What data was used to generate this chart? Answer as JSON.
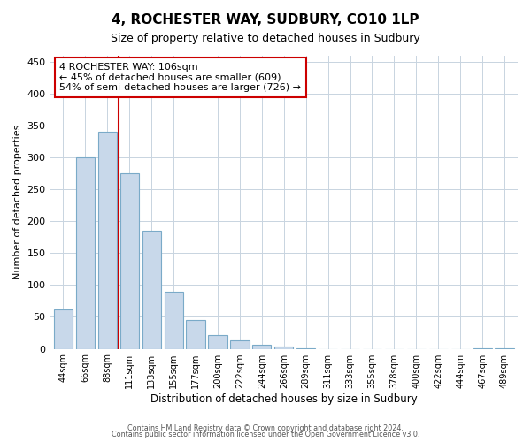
{
  "title": "4, ROCHESTER WAY, SUDBURY, CO10 1LP",
  "subtitle": "Size of property relative to detached houses in Sudbury",
  "xlabel": "Distribution of detached houses by size in Sudbury",
  "ylabel": "Number of detached properties",
  "bar_labels": [
    "44sqm",
    "66sqm",
    "88sqm",
    "111sqm",
    "133sqm",
    "155sqm",
    "177sqm",
    "200sqm",
    "222sqm",
    "244sqm",
    "266sqm",
    "289sqm",
    "311sqm",
    "333sqm",
    "355sqm",
    "378sqm",
    "400sqm",
    "422sqm",
    "444sqm",
    "467sqm",
    "489sqm"
  ],
  "bar_values": [
    62,
    300,
    340,
    275,
    185,
    90,
    45,
    22,
    13,
    7,
    3,
    1,
    0,
    0,
    0,
    0,
    0,
    0,
    0,
    1,
    1
  ],
  "bar_color": "#c8d8ea",
  "bar_edge_color": "#7aaac8",
  "vline_x": 2.5,
  "vline_color": "#cc0000",
  "annotation_line1": "4 ROCHESTER WAY: 106sqm",
  "annotation_line2": "← 45% of detached houses are smaller (609)",
  "annotation_line3": "54% of semi-detached houses are larger (726) →",
  "ann_box_border_color": "#cc0000",
  "ylim": [
    0,
    460
  ],
  "yticks": [
    0,
    50,
    100,
    150,
    200,
    250,
    300,
    350,
    400,
    450
  ],
  "footnote1": "Contains HM Land Registry data © Crown copyright and database right 2024.",
  "footnote2": "Contains public sector information licensed under the Open Government Licence v3.0.",
  "bg_color": "#ffffff",
  "grid_color": "#c8d4e0"
}
